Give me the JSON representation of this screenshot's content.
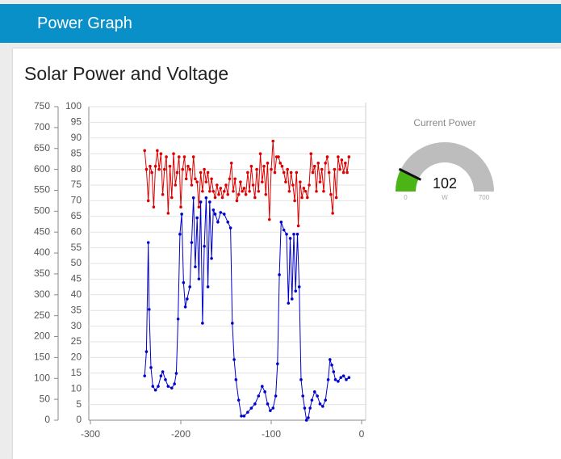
{
  "header": {
    "title": "Power Graph"
  },
  "chart_data": {
    "type": "line",
    "title": "Solar Power and Voltage",
    "xlim": [
      -300,
      0
    ],
    "xticks": [
      -300,
      -200,
      -100,
      0
    ],
    "ylim": [
      0,
      750
    ],
    "yticks": [
      0,
      50,
      100,
      150,
      200,
      250,
      300,
      350,
      400,
      450,
      500,
      550,
      600,
      650,
      700,
      750
    ],
    "y2lim": [
      0,
      100
    ],
    "y2ticks": [
      0,
      5,
      10,
      15,
      20,
      25,
      30,
      35,
      40,
      45,
      50,
      55,
      60,
      65,
      70,
      75,
      80,
      85,
      90,
      95,
      100
    ],
    "grid": true,
    "series": [
      {
        "color": "#0000cc",
        "axis": "y",
        "x": [
          -240,
          -238,
          -236,
          -235,
          -233,
          -231,
          -228,
          -225,
          -222,
          -220,
          -217,
          -214,
          -210,
          -207,
          -205,
          -203,
          -201,
          -199,
          -197,
          -195,
          -193,
          -190,
          -188,
          -186,
          -184,
          -182,
          -180,
          -178,
          -176,
          -174,
          -172,
          -170,
          -168,
          -166,
          -164,
          -162,
          -159,
          -156,
          -152,
          -148,
          -145,
          -143,
          -141,
          -139,
          -136,
          -133,
          -130,
          -126,
          -122,
          -118,
          -114,
          -110,
          -107,
          -104,
          -101,
          -98,
          -95,
          -93,
          -91,
          -89,
          -86,
          -83,
          -81,
          -79,
          -77,
          -75,
          -73,
          -71,
          -69,
          -67,
          -65,
          -63,
          -61,
          -59,
          -57,
          -55,
          -52,
          -49,
          -46,
          -43,
          -40,
          -37,
          -35,
          -33,
          -31,
          -29,
          -26,
          -23,
          -20,
          -17,
          -14
        ],
        "values": [
          106,
          164,
          425,
          265,
          126,
          81,
          72,
          81,
          106,
          116,
          97,
          81,
          77,
          87,
          112,
          242,
          445,
          493,
          329,
          271,
          290,
          319,
          425,
          532,
          367,
          484,
          338,
          522,
          232,
          416,
          532,
          319,
          522,
          387,
          503,
          493,
          474,
          497,
          493,
          474,
          460,
          232,
          145,
          97,
          48,
          10,
          10,
          19,
          29,
          39,
          58,
          81,
          68,
          39,
          23,
          29,
          58,
          135,
          348,
          474,
          455,
          445,
          280,
          435,
          290,
          445,
          309,
          445,
          319,
          97,
          58,
          29,
          0,
          6,
          29,
          48,
          68,
          58,
          39,
          33,
          48,
          97,
          145,
          132,
          116,
          97,
          93,
          102,
          106,
          97,
          102
        ]
      },
      {
        "color": "#dd0000",
        "axis": "y2",
        "x": [
          -240,
          -238,
          -236,
          -234,
          -232,
          -230,
          -228,
          -226,
          -224,
          -222,
          -220,
          -218,
          -216,
          -214,
          -212,
          -210,
          -208,
          -206,
          -204,
          -202,
          -200,
          -198,
          -196,
          -194,
          -192,
          -190,
          -188,
          -186,
          -184,
          -182,
          -180,
          -178,
          -176,
          -174,
          -172,
          -170,
          -168,
          -166,
          -164,
          -162,
          -160,
          -158,
          -156,
          -154,
          -152,
          -150,
          -148,
          -146,
          -144,
          -142,
          -140,
          -138,
          -136,
          -134,
          -132,
          -130,
          -128,
          -126,
          -124,
          -122,
          -120,
          -118,
          -116,
          -114,
          -112,
          -110,
          -108,
          -106,
          -104,
          -102,
          -100,
          -98,
          -96,
          -94,
          -92,
          -90,
          -88,
          -86,
          -84,
          -82,
          -80,
          -78,
          -76,
          -74,
          -72,
          -70,
          -68,
          -66,
          -64,
          -62,
          -60,
          -58,
          -56,
          -54,
          -52,
          -50,
          -48,
          -46,
          -44,
          -42,
          -40,
          -38,
          -36,
          -34,
          -32,
          -30,
          -28,
          -26,
          -24,
          -22,
          -20,
          -18,
          -16,
          -14
        ],
        "values": [
          86,
          80,
          70,
          81,
          79,
          68,
          81,
          86,
          80,
          85,
          72,
          80,
          84,
          66,
          81,
          71,
          85,
          75,
          79,
          84,
          68,
          80,
          84,
          77,
          81,
          80,
          75,
          84,
          77,
          76,
          68,
          79,
          73,
          80,
          76,
          79,
          73,
          77,
          73,
          71,
          75,
          72,
          74,
          71,
          73,
          75,
          72,
          77,
          82,
          73,
          77,
          70,
          72,
          76,
          73,
          74,
          72,
          79,
          73,
          81,
          75,
          71,
          80,
          73,
          85,
          76,
          81,
          72,
          82,
          64,
          80,
          89,
          79,
          84,
          84,
          82,
          81,
          79,
          76,
          80,
          73,
          79,
          75,
          70,
          79,
          62,
          76,
          71,
          74,
          73,
          71,
          75,
          85,
          79,
          81,
          73,
          82,
          76,
          80,
          73,
          82,
          84,
          79,
          72,
          66,
          80,
          71,
          84,
          80,
          83,
          79,
          82,
          79,
          84
        ]
      }
    ]
  },
  "gauge": {
    "title": "Current Power",
    "value": 102,
    "min": 0,
    "max": 700,
    "unit": "W",
    "color": "#4bb517",
    "track": "#bdbdbd"
  }
}
